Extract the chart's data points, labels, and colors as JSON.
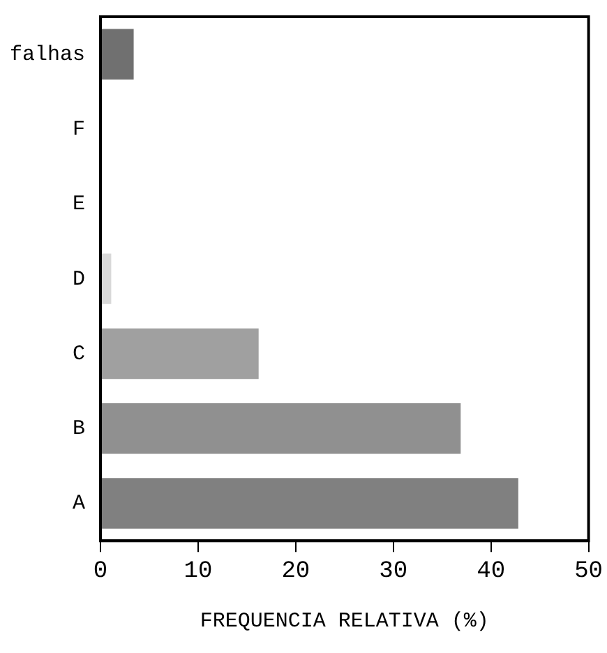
{
  "chart_data": {
    "type": "bar",
    "orientation": "horizontal",
    "xlabel": "FREQUENCIA RELATIVA (%)",
    "categories": [
      "falhas",
      "F",
      "E",
      "D",
      "C",
      "B",
      "A"
    ],
    "values": [
      3.4,
      0,
      0,
      1.1,
      16.2,
      36.9,
      42.8
    ],
    "colors": [
      "#707070",
      "#404040",
      "#404040",
      "#d8d8d8",
      "#a0a0a0",
      "#909090",
      "#808080"
    ],
    "xlim": [
      0,
      50
    ],
    "xticks": [
      0,
      10,
      20,
      30,
      40,
      50
    ],
    "grid": false,
    "legend": false
  }
}
